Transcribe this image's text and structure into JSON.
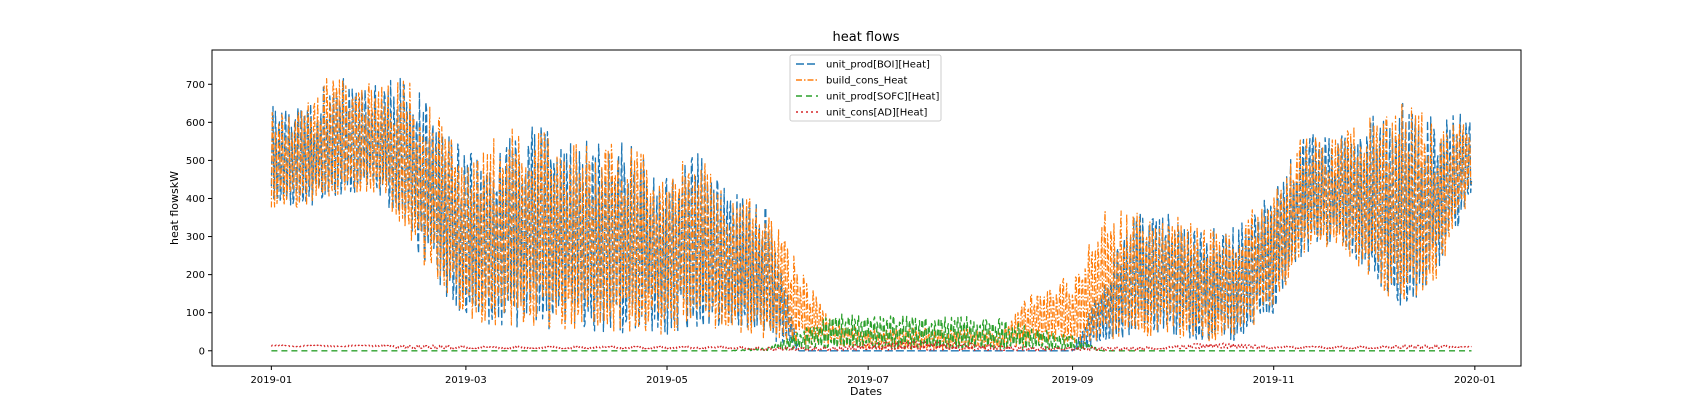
{
  "chart_data": {
    "type": "line",
    "title": "heat flows",
    "xlabel": "Dates",
    "ylabel": "heat flowskW",
    "x_ticks": [
      "2019-01",
      "2019-03",
      "2019-05",
      "2019-07",
      "2019-09",
      "2019-11",
      "2020-01"
    ],
    "y_ticks": [
      0,
      100,
      200,
      300,
      400,
      500,
      600,
      700
    ],
    "xlim": [
      "2018-12-14",
      "2020-01-15"
    ],
    "ylim": [
      -40,
      790
    ],
    "legend_position": "upper center",
    "x": [
      "2019-01-01",
      "2019-01-10",
      "2019-01-20",
      "2019-02-01",
      "2019-02-10",
      "2019-02-20",
      "2019-03-01",
      "2019-03-10",
      "2019-03-20",
      "2019-04-01",
      "2019-04-10",
      "2019-04-20",
      "2019-05-01",
      "2019-05-10",
      "2019-05-20",
      "2019-06-01",
      "2019-06-10",
      "2019-06-20",
      "2019-07-01",
      "2019-07-10",
      "2019-07-20",
      "2019-08-01",
      "2019-08-10",
      "2019-08-20",
      "2019-09-01",
      "2019-09-10",
      "2019-09-20",
      "2019-10-01",
      "2019-10-10",
      "2019-10-20",
      "2019-11-01",
      "2019-11-10",
      "2019-11-20",
      "2019-12-01",
      "2019-12-10",
      "2019-12-20",
      "2019-12-31"
    ],
    "series": [
      {
        "name": "unit_prod[BOI][Heat]",
        "color": "#1f77b4",
        "style": "dashed-long",
        "low": [
          350,
          360,
          380,
          420,
          300,
          150,
          60,
          40,
          30,
          30,
          20,
          20,
          20,
          40,
          20,
          10,
          0,
          0,
          0,
          0,
          0,
          0,
          0,
          0,
          0,
          10,
          20,
          20,
          10,
          10,
          80,
          240,
          260,
          160,
          80,
          160,
          400
        ],
        "high": [
          660,
          640,
          720,
          700,
          720,
          640,
          510,
          560,
          610,
          560,
          550,
          550,
          470,
          530,
          420,
          380,
          0,
          0,
          0,
          0,
          0,
          0,
          0,
          0,
          0,
          200,
          370,
          360,
          320,
          330,
          420,
          580,
          560,
          620,
          650,
          610,
          630
        ]
      },
      {
        "name": "build_cons_Heat",
        "color": "#ff7f0e",
        "style": "dash-dot",
        "low": [
          350,
          360,
          380,
          400,
          290,
          150,
          60,
          40,
          30,
          30,
          20,
          20,
          20,
          40,
          20,
          10,
          0,
          10,
          0,
          0,
          0,
          0,
          0,
          10,
          0,
          10,
          20,
          20,
          10,
          10,
          80,
          240,
          260,
          160,
          80,
          160,
          400
        ],
        "high": [
          650,
          630,
          750,
          700,
          720,
          640,
          510,
          560,
          610,
          550,
          545,
          540,
          470,
          530,
          420,
          385,
          225,
          80,
          60,
          60,
          60,
          60,
          50,
          160,
          200,
          370,
          370,
          360,
          320,
          330,
          420,
          580,
          560,
          620,
          650,
          610,
          620
        ]
      },
      {
        "name": "unit_prod[SOFC][Heat]",
        "color": "#2ca02c",
        "style": "dashed",
        "low": [
          0,
          0,
          0,
          0,
          0,
          0,
          0,
          0,
          0,
          0,
          0,
          0,
          0,
          0,
          0,
          0,
          0,
          0,
          0,
          0,
          0,
          0,
          0,
          0,
          0,
          0,
          0,
          0,
          0,
          0,
          0,
          0,
          0,
          0,
          0,
          0,
          0
        ],
        "high": [
          0,
          0,
          0,
          0,
          0,
          0,
          0,
          0,
          0,
          0,
          0,
          0,
          0,
          0,
          0,
          10,
          50,
          100,
          90,
          95,
          90,
          90,
          85,
          60,
          40,
          0,
          0,
          0,
          0,
          0,
          0,
          0,
          0,
          0,
          0,
          0,
          0
        ]
      },
      {
        "name": "unit_cons[AD][Heat]",
        "color": "#d62728",
        "style": "dotted",
        "low": [
          10,
          10,
          10,
          10,
          5,
          5,
          5,
          5,
          5,
          5,
          5,
          5,
          5,
          5,
          5,
          0,
          0,
          0,
          0,
          0,
          0,
          0,
          0,
          0,
          0,
          0,
          0,
          5,
          5,
          5,
          5,
          5,
          5,
          5,
          5,
          5,
          10
        ],
        "high": [
          15,
          15,
          15,
          15,
          15,
          15,
          12,
          12,
          12,
          12,
          12,
          12,
          12,
          12,
          12,
          10,
          10,
          10,
          20,
          25,
          25,
          20,
          15,
          10,
          10,
          10,
          10,
          12,
          20,
          20,
          12,
          12,
          12,
          12,
          15,
          15,
          15
        ]
      }
    ]
  }
}
